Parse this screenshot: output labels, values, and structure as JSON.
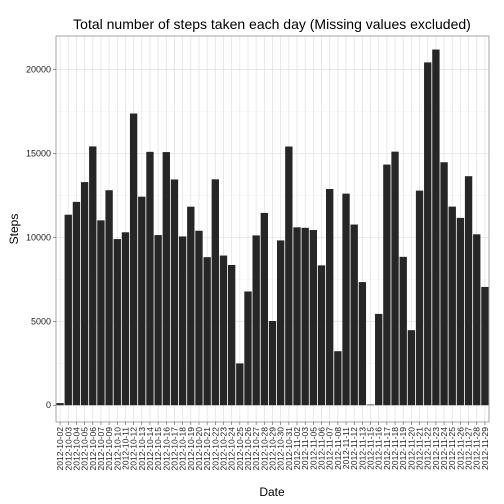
{
  "chart_data": {
    "type": "bar",
    "title": "Total number of steps taken each day (Missing values excluded)",
    "xlabel": "Date",
    "ylabel": "Steps",
    "ylim": [
      -1000,
      22000
    ],
    "yticks": [
      0,
      5000,
      10000,
      15000,
      20000
    ],
    "grid": true,
    "bar_color": "#262626",
    "categories": [
      "2012-10-02",
      "2012-10-03",
      "2012-10-04",
      "2012-10-05",
      "2012-10-06",
      "2012-10-07",
      "2012-10-09",
      "2012-10-10",
      "2012-10-11",
      "2012-10-12",
      "2012-10-13",
      "2012-10-14",
      "2012-10-15",
      "2012-10-16",
      "2012-10-17",
      "2012-10-18",
      "2012-10-19",
      "2012-10-20",
      "2012-10-21",
      "2012-10-22",
      "2012-10-23",
      "2012-10-24",
      "2012-10-25",
      "2012-10-26",
      "2012-10-27",
      "2012-10-28",
      "2012-10-29",
      "2012-10-30",
      "2012-10-31",
      "2012-11-02",
      "2012-11-03",
      "2012-11-05",
      "2012-11-06",
      "2012-11-07",
      "2012-11-08",
      "2012-11-11",
      "2012-11-12",
      "2012-11-13",
      "2012-11-15",
      "2012-11-16",
      "2012-11-17",
      "2012-11-18",
      "2012-11-19",
      "2012-11-20",
      "2012-11-21",
      "2012-11-22",
      "2012-11-23",
      "2012-11-24",
      "2012-11-25",
      "2012-11-26",
      "2012-11-27",
      "2012-11-28",
      "2012-11-29"
    ],
    "values": [
      126,
      11352,
      12116,
      13294,
      15420,
      11015,
      12811,
      9900,
      10304,
      17382,
      12426,
      15098,
      10139,
      15084,
      13452,
      10056,
      11829,
      10395,
      8821,
      13460,
      8918,
      8355,
      2492,
      6778,
      10119,
      11458,
      5018,
      9819,
      15414,
      10600,
      10571,
      10439,
      8334,
      12883,
      3219,
      12608,
      10765,
      7336,
      41,
      5441,
      14339,
      15110,
      8841,
      4472,
      12787,
      20427,
      21194,
      14478,
      11834,
      11162,
      13646,
      10183,
      7047
    ]
  }
}
